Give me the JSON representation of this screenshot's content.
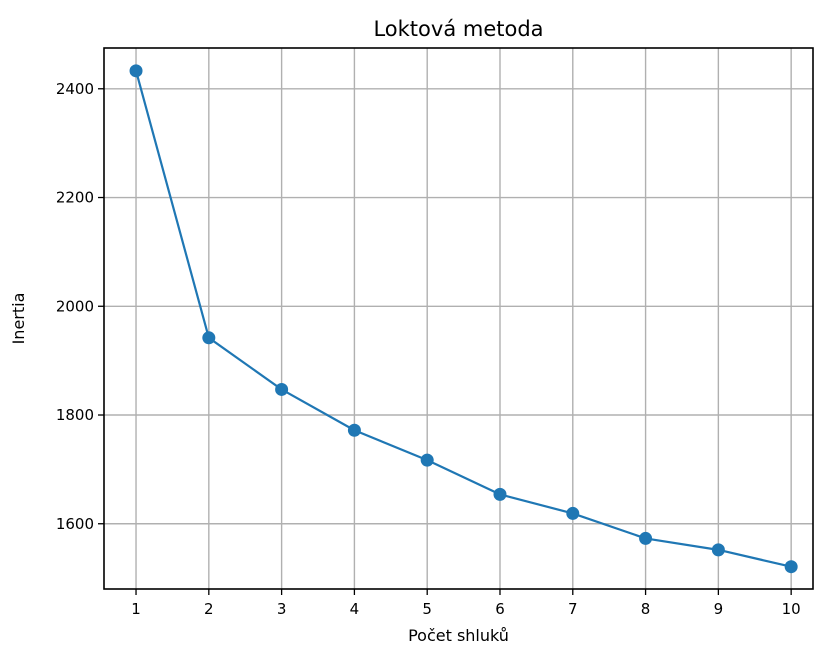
{
  "chart_data": {
    "type": "line",
    "title": "Loktová metoda",
    "xlabel": "Počet shluků",
    "ylabel": "Inertia",
    "x": [
      1,
      2,
      3,
      4,
      5,
      6,
      7,
      8,
      9,
      10
    ],
    "xticks": [
      "1",
      "2",
      "3",
      "4",
      "5",
      "6",
      "7",
      "8",
      "9",
      "10"
    ],
    "yticks": [
      "1600",
      "1800",
      "2000",
      "2200",
      "2400"
    ],
    "xlim": [
      0.56,
      10.3
    ],
    "ylim": [
      1480,
      2475
    ],
    "grid": true,
    "series": [
      {
        "color": "#1f77b4",
        "marker": "circle",
        "values": [
          2433,
          1942,
          1847,
          1772,
          1717,
          1654,
          1619,
          1573,
          1552,
          1521
        ]
      }
    ]
  }
}
